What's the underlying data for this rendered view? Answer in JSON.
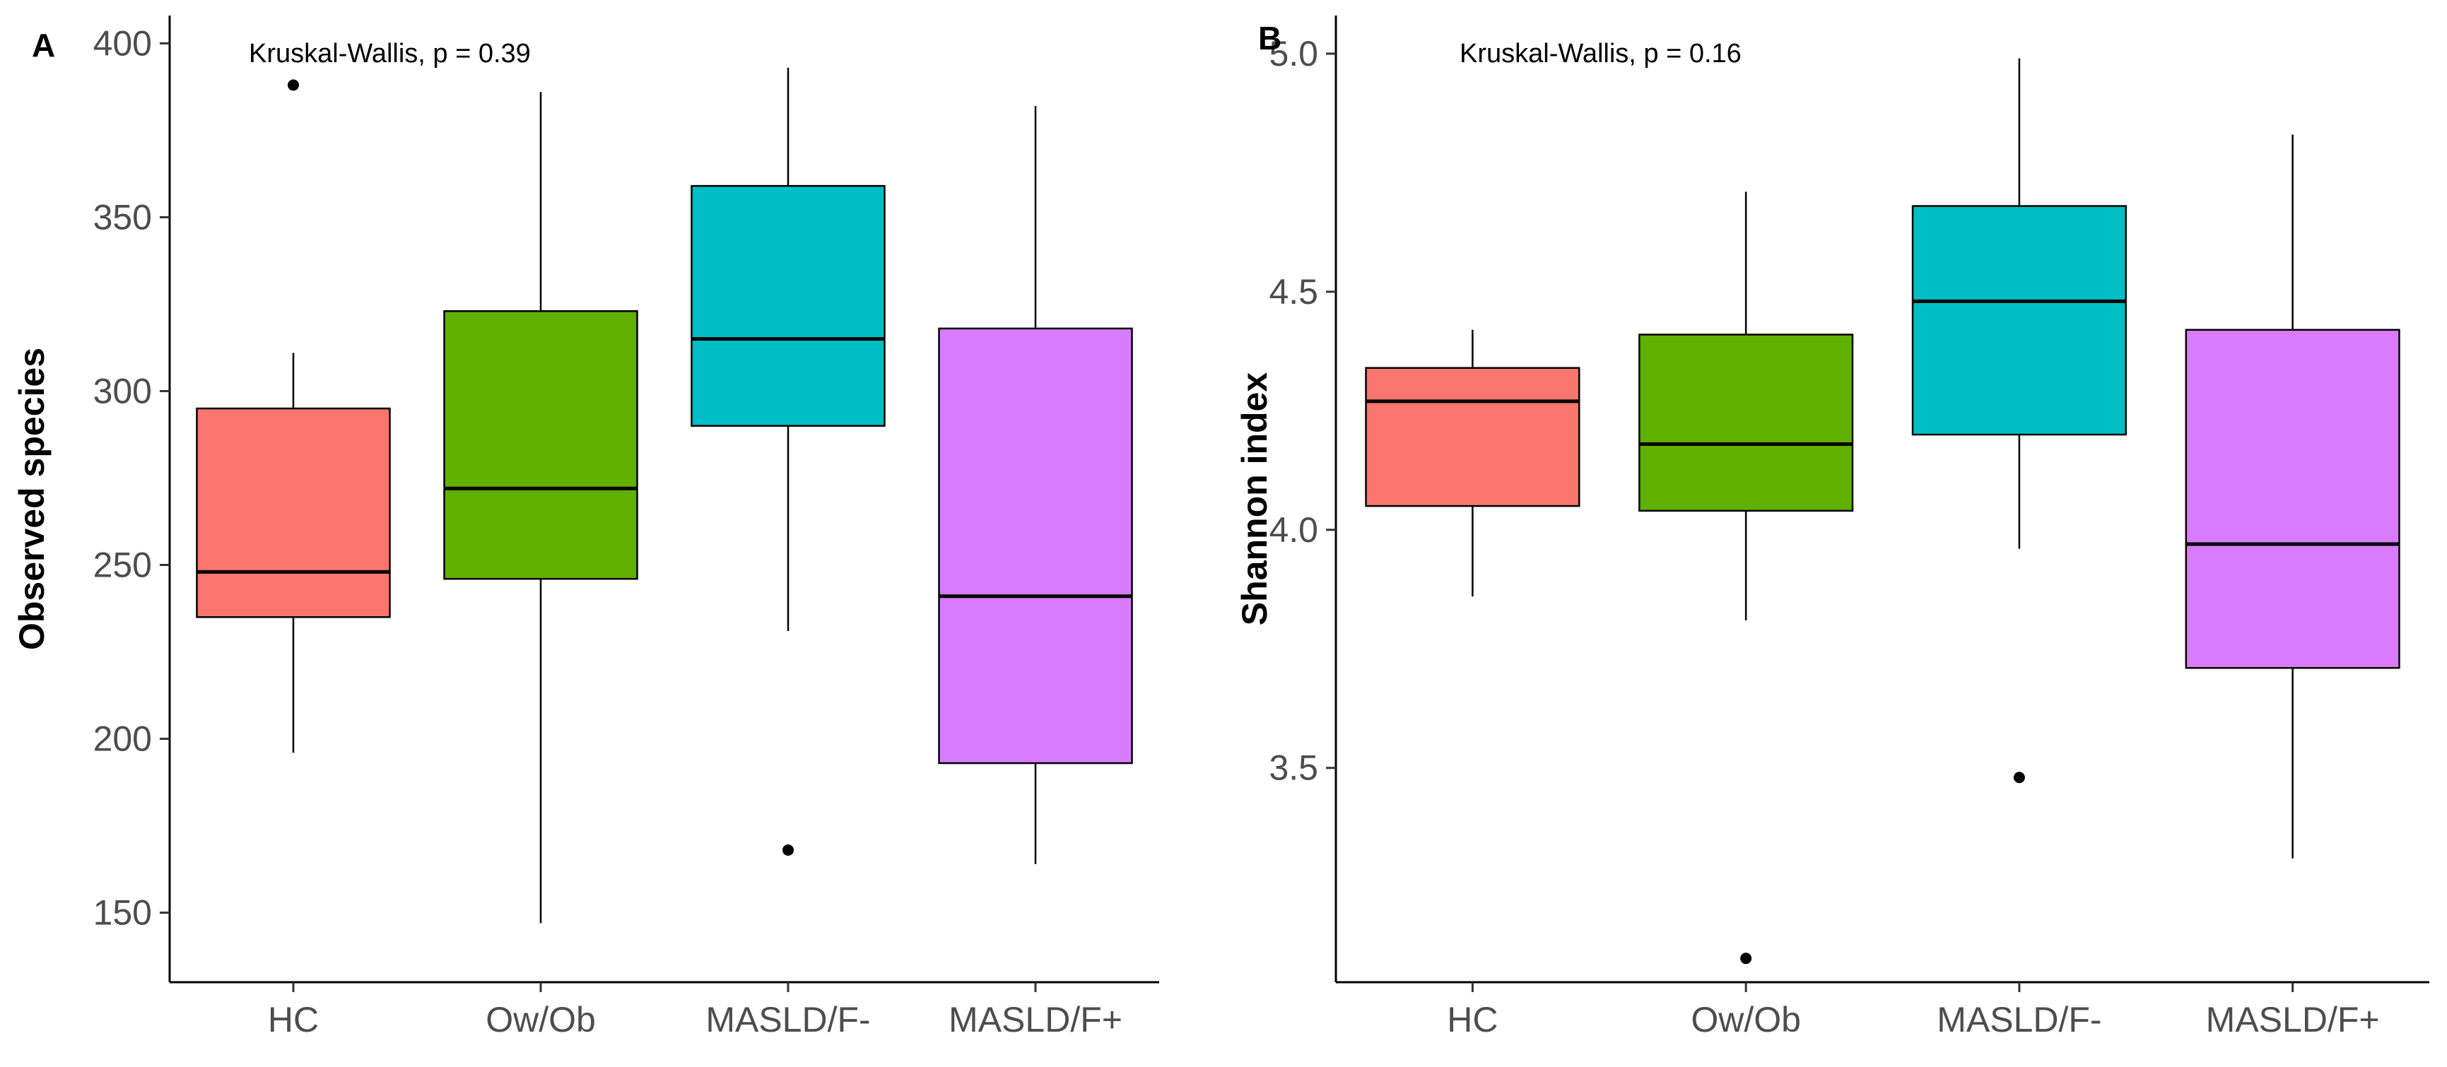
{
  "chart_data": [
    {
      "type": "boxplot",
      "panel": "A",
      "annotation": "Kruskal-Wallis, p = 0.39",
      "xlabel": "",
      "ylabel": "Observed species",
      "ylim": [
        130,
        408
      ],
      "yticks": [
        150,
        200,
        250,
        300,
        350,
        400
      ],
      "categories": [
        "HC",
        "Ow/Ob",
        "MASLD/F-",
        "MASLD/F+"
      ],
      "colors": [
        "#F8766D",
        "#5FB000",
        "#00BFC4",
        "#D97BFF"
      ],
      "boxes": [
        {
          "group": "HC",
          "whisker_low": 196,
          "q1": 235,
          "median": 248,
          "q3": 295,
          "whisker_high": 311,
          "outliers": [
            388
          ]
        },
        {
          "group": "Ow/Ob",
          "whisker_low": 147,
          "q1": 246,
          "median": 272,
          "q3": 323,
          "whisker_high": 386,
          "outliers": []
        },
        {
          "group": "MASLD/F-",
          "whisker_low": 231,
          "q1": 290,
          "median": 315,
          "q3": 359,
          "whisker_high": 393,
          "outliers": [
            168
          ]
        },
        {
          "group": "MASLD/F+",
          "whisker_low": 164,
          "q1": 193,
          "median": 241,
          "q3": 318,
          "whisker_high": 382,
          "outliers": []
        }
      ]
    },
    {
      "type": "boxplot",
      "panel": "B",
      "annotation": "Kruskal-Wallis, p = 0.16",
      "xlabel": "",
      "ylabel": "Shannon index",
      "ylim": [
        3.05,
        5.08
      ],
      "yticks": [
        3.5,
        4.0,
        4.5,
        5.0
      ],
      "ytick_labels": [
        "3.5",
        "4.0",
        "4.5",
        "5.0"
      ],
      "categories": [
        "HC",
        "Ow/Ob",
        "MASLD/F-",
        "MASLD/F+"
      ],
      "colors": [
        "#F8766D",
        "#5FB000",
        "#00BFC4",
        "#D97BFF"
      ],
      "boxes": [
        {
          "group": "HC",
          "whisker_low": 3.86,
          "q1": 4.05,
          "median": 4.27,
          "q3": 4.34,
          "whisker_high": 4.42,
          "outliers": []
        },
        {
          "group": "Ow/Ob",
          "whisker_low": 3.81,
          "q1": 4.04,
          "median": 4.18,
          "q3": 4.41,
          "whisker_high": 4.71,
          "outliers": [
            3.1
          ]
        },
        {
          "group": "MASLD/F-",
          "whisker_low": 3.96,
          "q1": 4.2,
          "median": 4.48,
          "q3": 4.68,
          "whisker_high": 4.99,
          "outliers": [
            3.48
          ]
        },
        {
          "group": "MASLD/F+",
          "whisker_low": 3.31,
          "q1": 3.71,
          "median": 3.97,
          "q3": 4.42,
          "whisker_high": 4.83,
          "outliers": []
        }
      ]
    }
  ]
}
